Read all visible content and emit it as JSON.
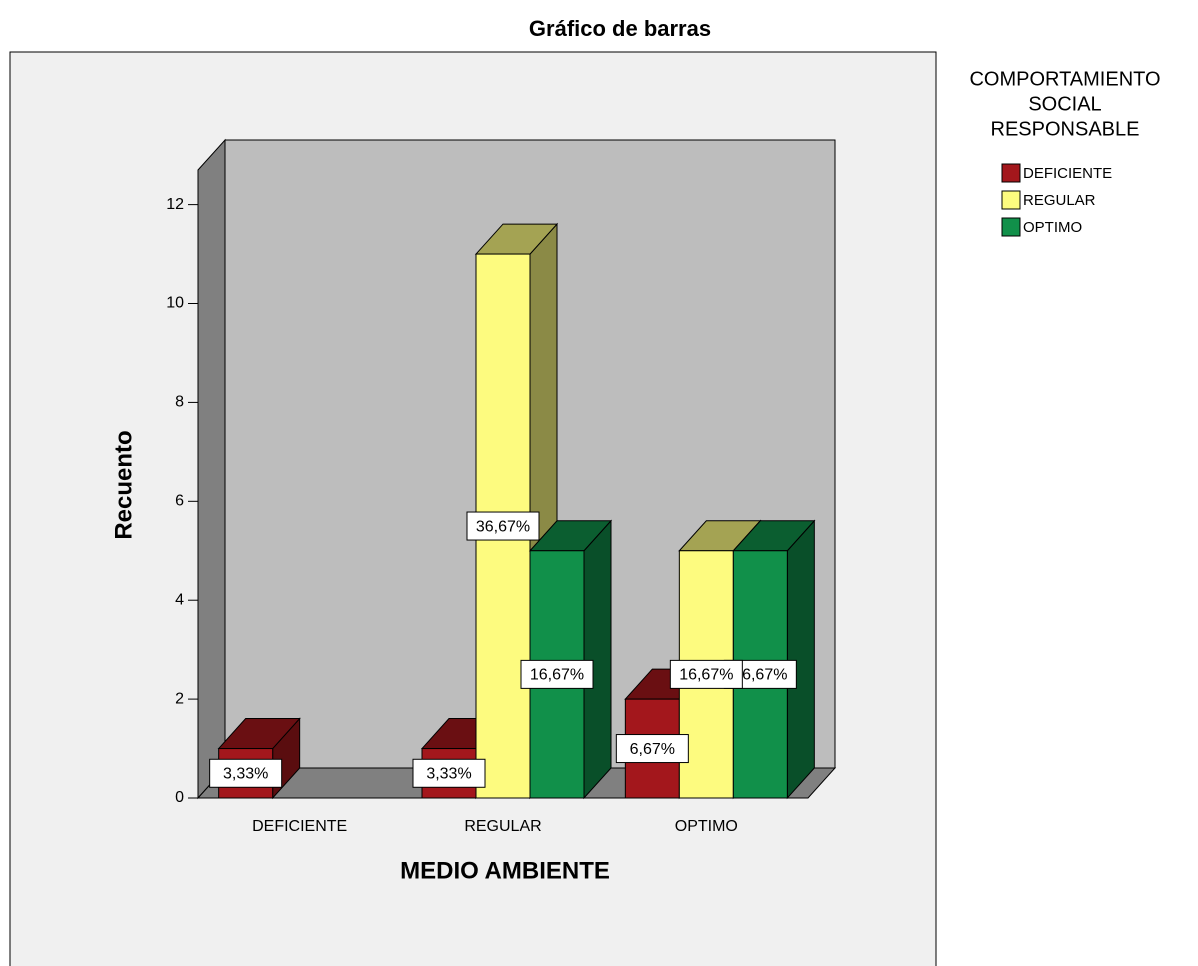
{
  "chart_data": {
    "type": "bar3d",
    "title": "Gráfico de barras",
    "xlabel": "MEDIO AMBIENTE",
    "ylabel": "Recuento",
    "legend_title": [
      "COMPORTAMIENTO",
      "SOCIAL",
      "RESPONSABLE"
    ],
    "categories": [
      "DEFICIENTE",
      "REGULAR",
      "OPTIMO"
    ],
    "series": [
      {
        "name": "DEFICIENTE",
        "color": "#a3171c",
        "values": [
          1,
          1,
          2
        ],
        "value_labels": [
          "3,33%",
          "3,33%",
          "6,67%"
        ]
      },
      {
        "name": "REGULAR",
        "color": "#fdfb7f",
        "values": [
          null,
          11,
          5
        ],
        "value_labels": [
          null,
          "36,67%",
          "16,67%"
        ]
      },
      {
        "name": "OPTIMO",
        "color": "#11904a",
        "values": [
          null,
          5,
          5
        ],
        "value_labels": [
          null,
          "16,67%",
          "16,67%"
        ]
      }
    ],
    "ylim": [
      0,
      12.7
    ],
    "yticks": [
      0,
      2,
      4,
      6,
      8,
      10,
      12
    ],
    "grid": false,
    "legend": "right"
  }
}
